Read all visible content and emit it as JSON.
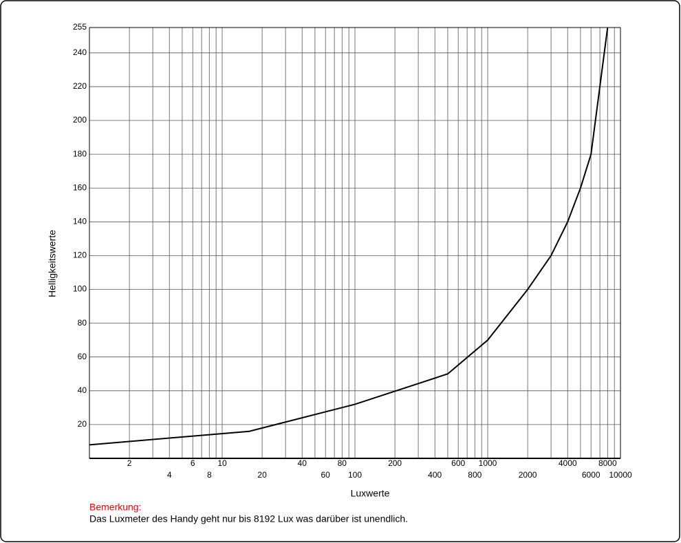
{
  "chart_data": {
    "type": "line",
    "x_label": "Luxwerte",
    "y_label": "Helligkeitswerte",
    "x": [
      1,
      16,
      100,
      500,
      1000,
      2000,
      3000,
      4000,
      5000,
      6000,
      8000
    ],
    "series": [
      {
        "color": "#000000",
        "values": [
          8,
          16,
          32,
          50,
          70,
          100,
          120,
          140,
          160,
          180,
          255
        ]
      }
    ],
    "xscale": "log",
    "xlim": [
      1,
      10000
    ],
    "xticks": [
      2,
      4,
      6,
      8,
      10,
      20,
      40,
      60,
      80,
      100,
      200,
      400,
      600,
      800,
      1000,
      2000,
      4000,
      6000,
      8000,
      10000
    ],
    "xminor": [
      3,
      5,
      7,
      9,
      30,
      50,
      70,
      90,
      300,
      500,
      700,
      900,
      3000,
      5000,
      7000,
      9000
    ],
    "ylim": [
      0,
      255
    ],
    "yticks": [
      20,
      40,
      60,
      80,
      100,
      120,
      140,
      160,
      180,
      200,
      220,
      240,
      255
    ],
    "grid": true
  },
  "note": {
    "heading": "Bemerkung:",
    "text": "Das Luxmeter des Handy geht nur bis 8192 Lux was darüber ist unendlich."
  }
}
